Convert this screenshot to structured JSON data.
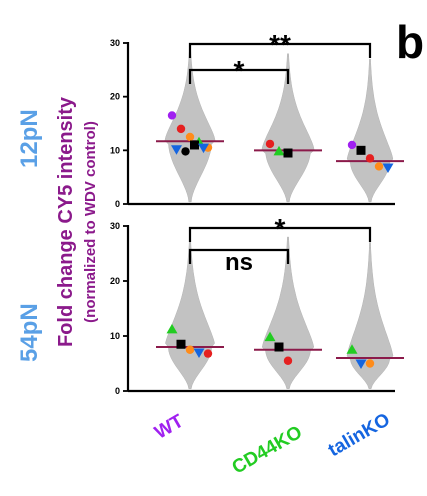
{
  "panel_letter": "b",
  "ylabel": {
    "line1": "Fold change CY5 intensity",
    "line2": "(normalized to WDV control)",
    "color": "#8b1a8b"
  },
  "conditions": {
    "color": "#5aa0e6",
    "top": "12pN",
    "bottom": "54pN"
  },
  "categories": [
    {
      "label": "WT",
      "color": "#a020f0"
    },
    {
      "label": "CD44KO",
      "color": "#22cc22"
    },
    {
      "label": "talinKO",
      "color": "#1565e0"
    }
  ],
  "chart_data": [
    {
      "type": "scatter",
      "subtype": "violin-superplot",
      "condition": "12pN",
      "categories": [
        "WT",
        "CD44KO",
        "talinKO"
      ],
      "ylim": [
        0,
        30
      ],
      "yticks": [
        "0",
        "10",
        "20",
        "30"
      ],
      "means": [
        11.7,
        10.0,
        8.0
      ],
      "violin_max": [
        29,
        28,
        27
      ],
      "replicates": [
        {
          "category": "WT",
          "points": [
            {
              "y": 16.5,
              "color": "#a020f0",
              "shape": "circle"
            },
            {
              "y": 14.0,
              "color": "#e52020",
              "shape": "circle"
            },
            {
              "y": 12.5,
              "color": "#ff8c1a",
              "shape": "circle"
            },
            {
              "y": 11.5,
              "color": "#22cc22",
              "shape": "triangle-up"
            },
            {
              "y": 10.5,
              "color": "#ff8c1a",
              "shape": "circle"
            },
            {
              "y": 10.2,
              "color": "#1565e0",
              "shape": "triangle-down"
            },
            {
              "y": 9.8,
              "color": "#000000",
              "shape": "circle"
            },
            {
              "y": 11.0,
              "color": "#000000",
              "shape": "square"
            },
            {
              "y": 10.5,
              "color": "#1565e0",
              "shape": "triangle-down"
            }
          ]
        },
        {
          "category": "CD44KO",
          "points": [
            {
              "y": 11.2,
              "color": "#e52020",
              "shape": "circle"
            },
            {
              "y": 9.8,
              "color": "#22cc22",
              "shape": "triangle-up"
            },
            {
              "y": 9.5,
              "color": "#000000",
              "shape": "square"
            }
          ]
        },
        {
          "category": "talinKO",
          "points": [
            {
              "y": 11.0,
              "color": "#a020f0",
              "shape": "circle"
            },
            {
              "y": 10.0,
              "color": "#000000",
              "shape": "square"
            },
            {
              "y": 8.5,
              "color": "#e52020",
              "shape": "circle"
            },
            {
              "y": 7.0,
              "color": "#ff8c1a",
              "shape": "circle"
            },
            {
              "y": 6.8,
              "color": "#1565e0",
              "shape": "triangle-down"
            }
          ]
        }
      ],
      "significance": [
        {
          "from": "WT",
          "to": "talinKO",
          "label": "**"
        },
        {
          "from": "WT",
          "to": "CD44KO",
          "label": "*"
        }
      ]
    },
    {
      "type": "scatter",
      "subtype": "violin-superplot",
      "condition": "54pN",
      "categories": [
        "WT",
        "CD44KO",
        "talinKO"
      ],
      "ylim": [
        0,
        30
      ],
      "yticks": [
        "0",
        "10",
        "20",
        "30"
      ],
      "means": [
        8.0,
        7.5,
        6.0
      ],
      "violin_max": [
        28,
        28,
        27
      ],
      "replicates": [
        {
          "category": "WT",
          "points": [
            {
              "y": 11.2,
              "color": "#22cc22",
              "shape": "triangle-up"
            },
            {
              "y": 8.5,
              "color": "#000000",
              "shape": "square"
            },
            {
              "y": 7.5,
              "color": "#ff8c1a",
              "shape": "circle"
            },
            {
              "y": 7.0,
              "color": "#1565e0",
              "shape": "triangle-down"
            },
            {
              "y": 6.8,
              "color": "#e52020",
              "shape": "circle"
            }
          ]
        },
        {
          "category": "CD44KO",
          "points": [
            {
              "y": 9.8,
              "color": "#22cc22",
              "shape": "triangle-up"
            },
            {
              "y": 8.0,
              "color": "#000000",
              "shape": "square"
            },
            {
              "y": 5.5,
              "color": "#e52020",
              "shape": "circle"
            }
          ]
        },
        {
          "category": "talinKO",
          "points": [
            {
              "y": 7.5,
              "color": "#22cc22",
              "shape": "triangle-up"
            },
            {
              "y": 5.0,
              "color": "#1565e0",
              "shape": "triangle-down"
            },
            {
              "y": 5.0,
              "color": "#ff8c1a",
              "shape": "circle"
            }
          ]
        }
      ],
      "significance": [
        {
          "from": "WT",
          "to": "talinKO",
          "label": "*"
        },
        {
          "from": "WT",
          "to": "CD44KO",
          "label": "ns"
        }
      ]
    }
  ]
}
